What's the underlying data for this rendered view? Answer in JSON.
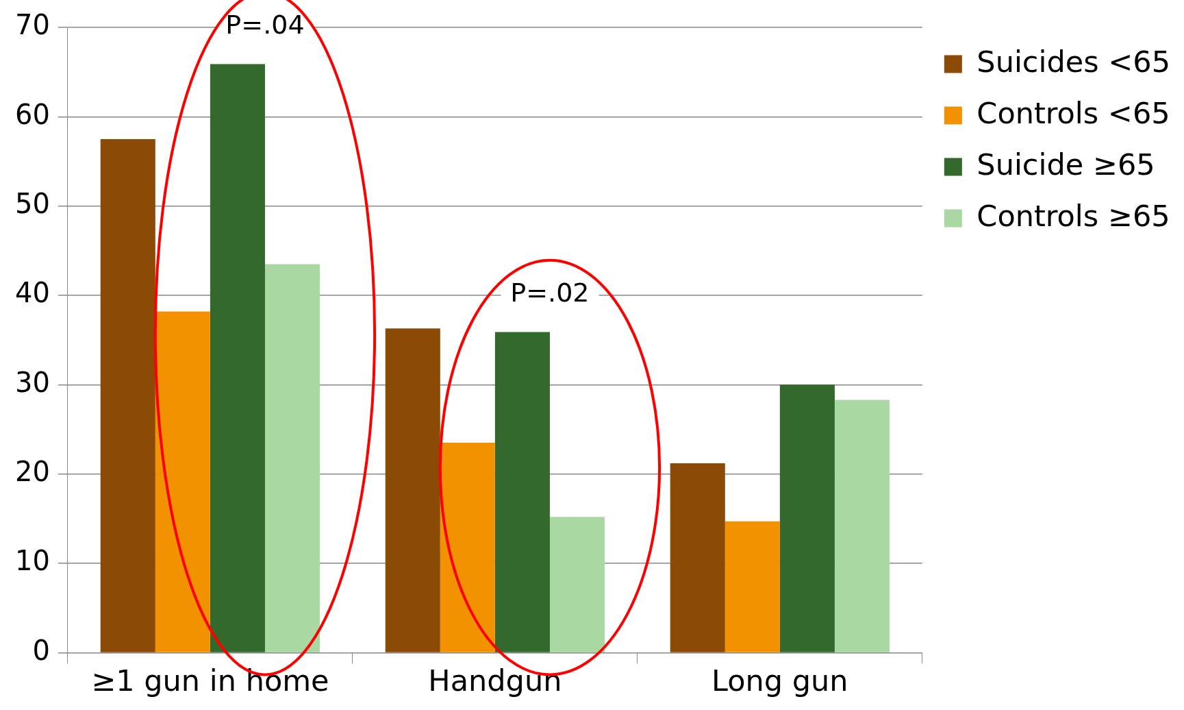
{
  "chart_data": {
    "type": "bar",
    "categories": [
      "≥1 gun in home",
      "Handgun",
      "Long gun"
    ],
    "series": [
      {
        "name": "Suicides <65",
        "color": "#8b4a06",
        "values": [
          57.5,
          36.3,
          21.2
        ]
      },
      {
        "name": "Controls <65",
        "color": "#f39200",
        "values": [
          38.2,
          23.5,
          14.7
        ]
      },
      {
        "name": "Suicide ≥65",
        "color": "#33692c",
        "values": [
          65.9,
          35.9,
          30.0
        ]
      },
      {
        "name": "Controls ≥65",
        "color": "#a9d8a2",
        "values": [
          43.5,
          15.2,
          28.3
        ]
      }
    ],
    "ylim": [
      0,
      70
    ],
    "yticks": [
      0,
      10,
      20,
      30,
      40,
      50,
      60,
      70
    ],
    "grid": "y",
    "legend": "top right",
    "annotations": [
      "P=.04",
      "P=.02"
    ]
  }
}
